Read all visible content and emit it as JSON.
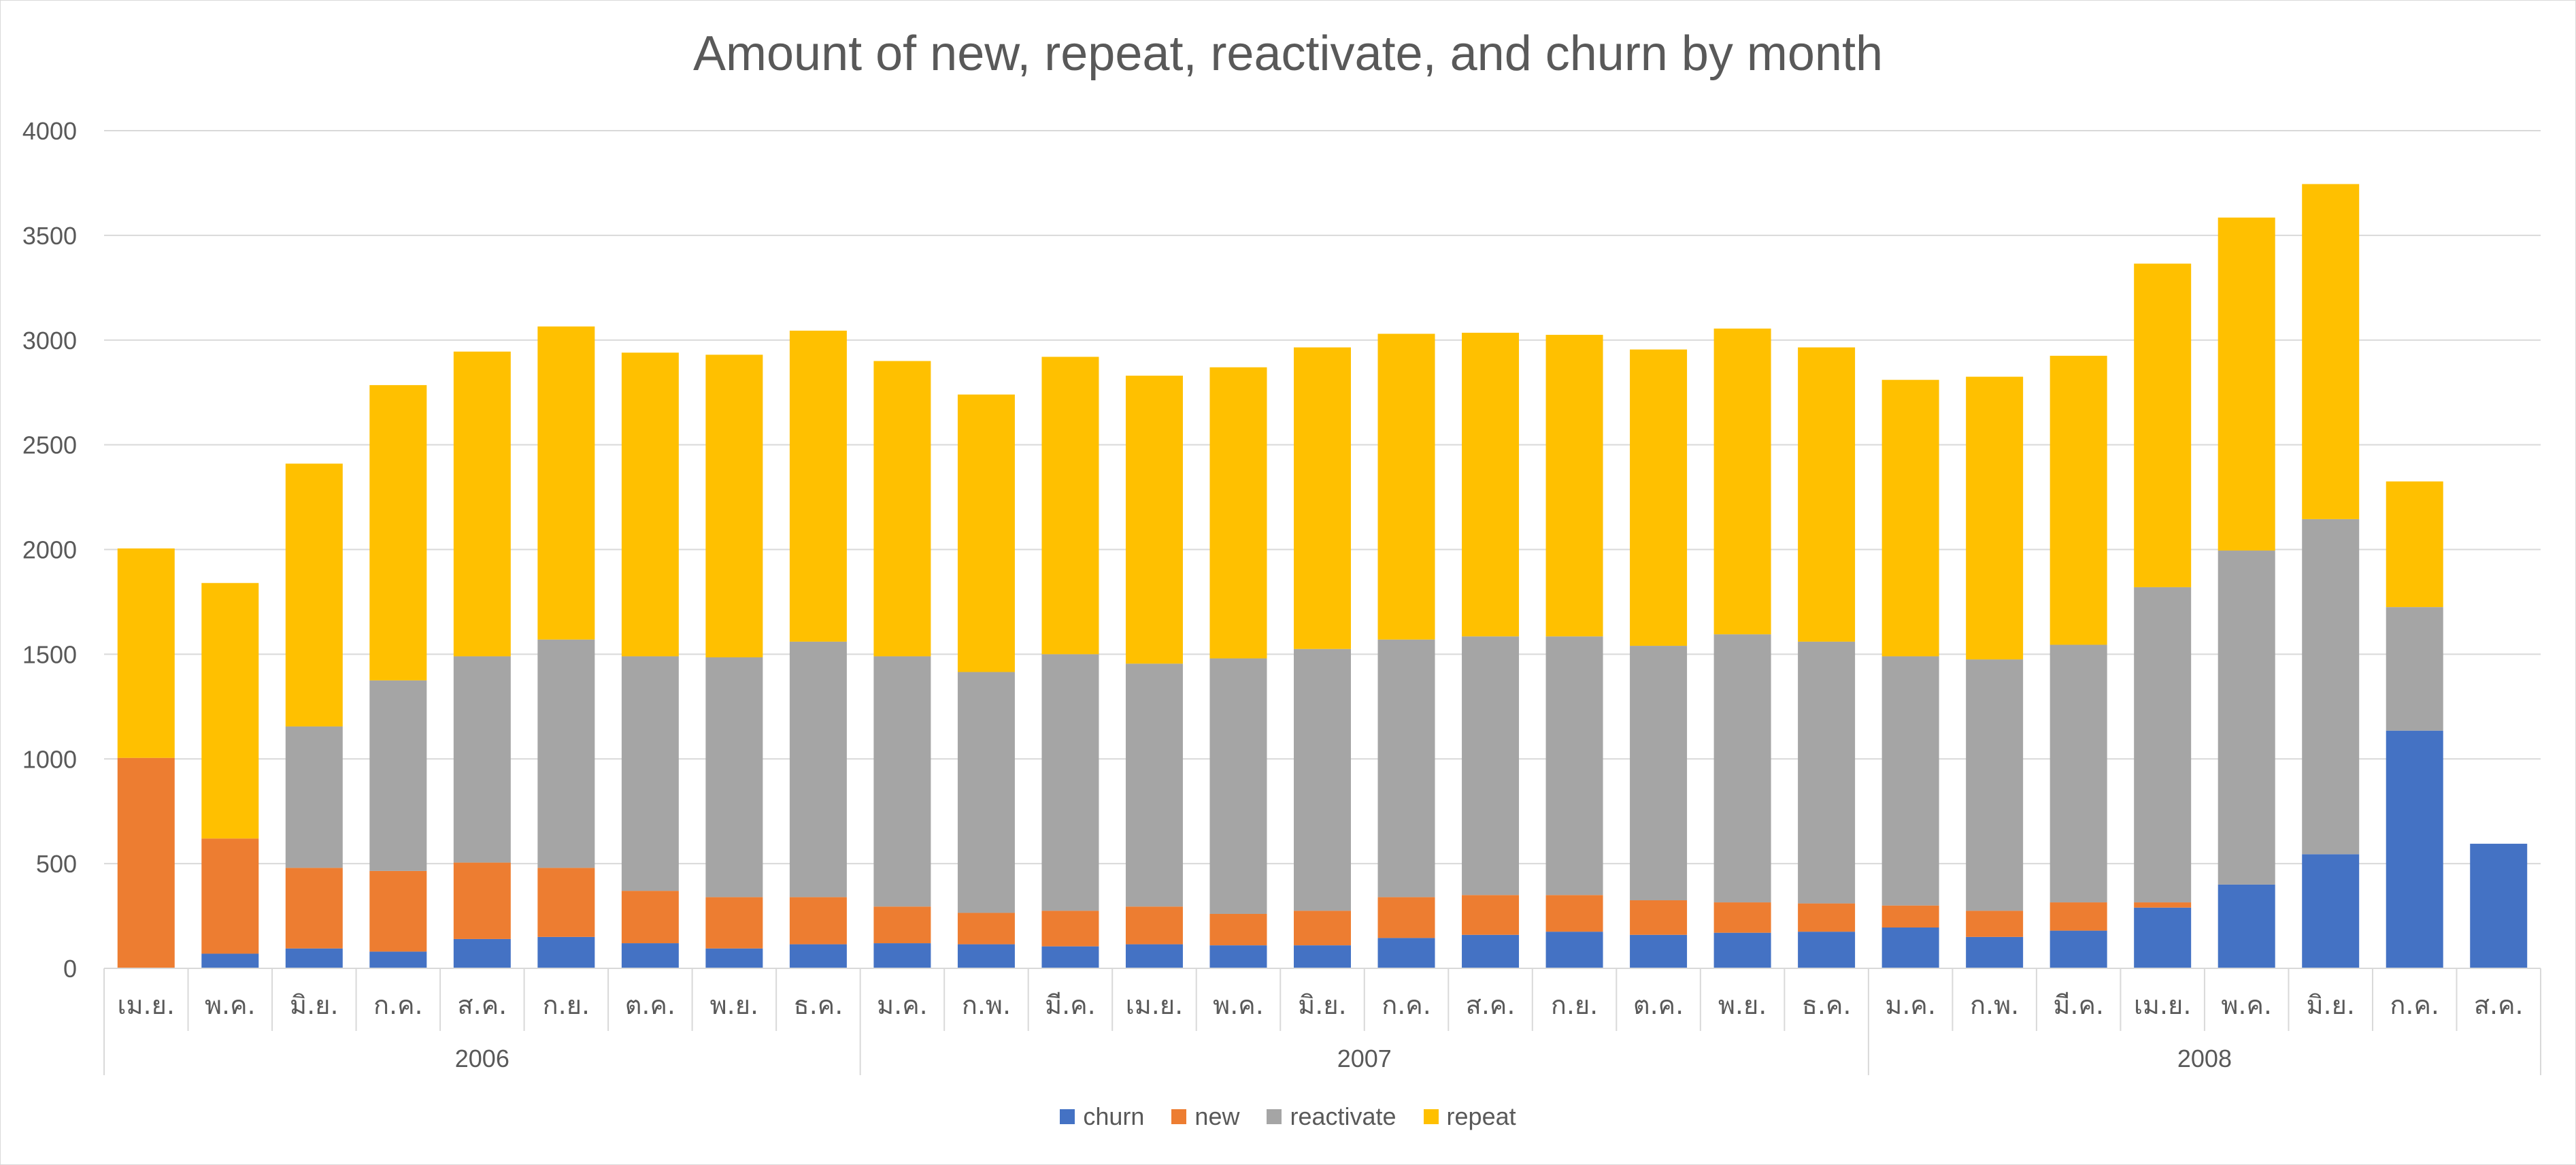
{
  "chart_data": {
    "type": "bar",
    "stacked": true,
    "title": "Amount of new, repeat, reactivate, and churn by month",
    "xlabel": "",
    "ylabel": "",
    "ylim": [
      0,
      4000
    ],
    "yticks": [
      0,
      500,
      1000,
      1500,
      2000,
      2500,
      3000,
      3500,
      4000
    ],
    "grid": true,
    "legend_position": "bottom",
    "categories": [
      "เม.ย.",
      "พ.ค.",
      "มิ.ย.",
      "ก.ค.",
      "ส.ค.",
      "ก.ย.",
      "ต.ค.",
      "พ.ย.",
      "ธ.ค.",
      "ม.ค.",
      "ก.พ.",
      "มี.ค.",
      "เม.ย.",
      "พ.ค.",
      "มิ.ย.",
      "ก.ค.",
      "ส.ค.",
      "ก.ย.",
      "ต.ค.",
      "พ.ย.",
      "ธ.ค.",
      "ม.ค.",
      "ก.พ.",
      "มี.ค.",
      "เม.ย.",
      "พ.ค.",
      "มิ.ย.",
      "ก.ค.",
      "ส.ค."
    ],
    "groups": [
      {
        "label": "2006",
        "start": 0,
        "count": 9
      },
      {
        "label": "2007",
        "start": 9,
        "count": 12
      },
      {
        "label": "2008",
        "start": 21,
        "count": 8
      }
    ],
    "series": [
      {
        "name": "churn",
        "color": "#4472c4",
        "values": [
          0,
          70,
          95,
          80,
          140,
          150,
          120,
          95,
          115,
          120,
          115,
          105,
          115,
          110,
          110,
          145,
          160,
          175,
          160,
          170,
          175,
          195,
          150,
          180,
          290,
          400,
          545,
          1135,
          595
        ]
      },
      {
        "name": "new",
        "color": "#ed7d31",
        "values": [
          1005,
          550,
          385,
          385,
          365,
          330,
          250,
          245,
          225,
          175,
          150,
          170,
          180,
          150,
          165,
          195,
          190,
          175,
          165,
          145,
          135,
          105,
          125,
          135,
          25,
          0,
          0,
          0,
          0
        ]
      },
      {
        "name": "reactivate",
        "color": "#a5a5a5",
        "values": [
          0,
          0,
          675,
          910,
          985,
          1090,
          1120,
          1145,
          1220,
          1195,
          1150,
          1225,
          1160,
          1220,
          1250,
          1230,
          1235,
          1235,
          1215,
          1280,
          1250,
          1190,
          1200,
          1230,
          1505,
          1595,
          1600,
          590,
          0
        ]
      },
      {
        "name": "repeat",
        "color": "#ffc000",
        "values": [
          1000,
          1220,
          1255,
          1410,
          1455,
          1495,
          1450,
          1445,
          1485,
          1410,
          1325,
          1420,
          1375,
          1390,
          1440,
          1460,
          1450,
          1440,
          1415,
          1460,
          1405,
          1320,
          1350,
          1380,
          1545,
          1590,
          1600,
          600,
          0
        ]
      }
    ]
  }
}
